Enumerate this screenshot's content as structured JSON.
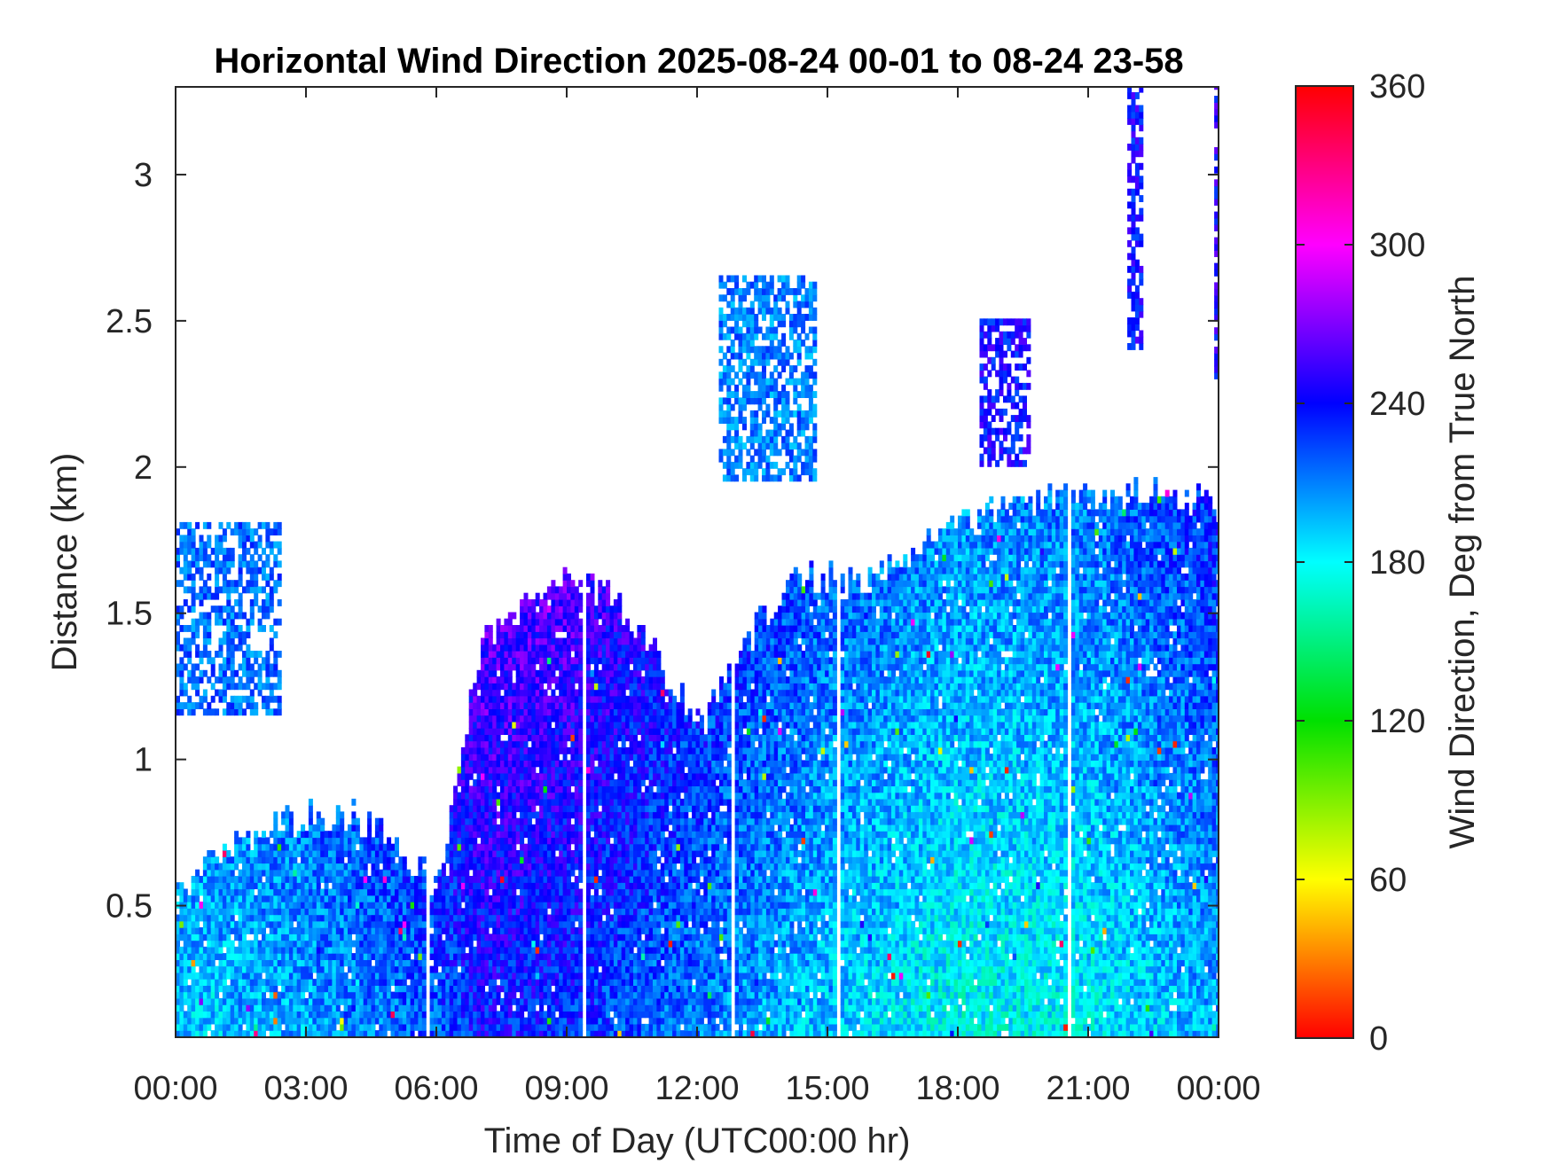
{
  "chart_data": {
    "type": "heatmap",
    "title": "Horizontal Wind Direction 2025-08-24 00-01 to 08-24 23-58",
    "xlabel": "Time of Day (UTC00:00 hr)",
    "ylabel": "Distance (km)",
    "colorbar_label": "Wind Direction, Deg from True North",
    "x_ticks": [
      "00:00",
      "03:00",
      "06:00",
      "09:00",
      "12:00",
      "15:00",
      "18:00",
      "21:00",
      "00:00"
    ],
    "x_range_hours": [
      0,
      24
    ],
    "y_ticks": [
      "0.5",
      "1",
      "1.5",
      "2",
      "2.5",
      "3"
    ],
    "y_tick_values": [
      0.5,
      1,
      1.5,
      2,
      2.5,
      3
    ],
    "ylim": [
      0.05,
      3.3
    ],
    "colorbar_ticks": [
      "0",
      "60",
      "120",
      "180",
      "240",
      "300",
      "360"
    ],
    "colorbar_tick_values": [
      0,
      60,
      120,
      180,
      240,
      300,
      360
    ],
    "clim": [
      0,
      360
    ],
    "colormap": [
      "#ff0000",
      "#ffff00",
      "#00e000",
      "#00ffff",
      "#0000ff",
      "#ff00ff",
      "#ff0000"
    ],
    "data_top_km_by_hour": {
      "hours": [
        0,
        1,
        2,
        3,
        4,
        5,
        6,
        7,
        8,
        9,
        10,
        11,
        12,
        13,
        14,
        15,
        16,
        17,
        18,
        19,
        20,
        21,
        22,
        23,
        24
      ],
      "top_km": [
        0.55,
        0.65,
        0.75,
        0.8,
        0.8,
        0.7,
        0.55,
        1.4,
        1.5,
        1.6,
        1.55,
        1.35,
        1.1,
        1.35,
        1.6,
        1.6,
        1.6,
        1.7,
        1.8,
        1.85,
        1.9,
        1.9,
        1.9,
        1.9,
        1.85
      ]
    },
    "dominant_direction_deg_by_hour": {
      "hours": [
        0,
        3,
        6,
        7,
        9,
        12,
        15,
        18,
        21,
        24
      ],
      "direction_deg": [
        190,
        200,
        220,
        235,
        230,
        210,
        190,
        175,
        180,
        200
      ]
    },
    "patches": [
      {
        "t_hours": [
          0.0,
          2.4
        ],
        "km": [
          1.15,
          1.8
        ],
        "direction_deg": 215
      },
      {
        "t_hours": [
          12.5,
          14.7
        ],
        "km": [
          1.95,
          2.65
        ],
        "direction_deg": 210
      },
      {
        "t_hours": [
          18.5,
          19.6
        ],
        "km": [
          2.0,
          2.5
        ],
        "direction_deg": 240
      },
      {
        "t_hours": [
          21.9,
          22.2
        ],
        "km": [
          2.4,
          3.3
        ],
        "direction_deg": 240
      },
      {
        "t_hours": [
          23.9,
          24.0
        ],
        "km": [
          2.3,
          3.3
        ],
        "direction_deg": 245
      }
    ]
  }
}
